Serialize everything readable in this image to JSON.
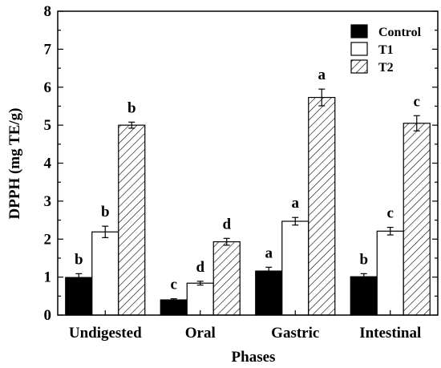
{
  "chart_data": {
    "type": "bar",
    "xlabel": "Phases",
    "ylabel": "DPPH (mg TE/g)",
    "ylim": [
      0,
      8
    ],
    "yticks": [
      0,
      1,
      2,
      3,
      4,
      5,
      6,
      7,
      8
    ],
    "categories": [
      "Undigested",
      "Oral",
      "Gastric",
      "Intestinal"
    ],
    "legend_position": "top-right",
    "series": [
      {
        "name": "Control",
        "fill": "solid",
        "color": "#000000",
        "values": [
          0.99,
          0.4,
          1.16,
          1.01
        ],
        "errors": [
          0.1,
          0.03,
          0.1,
          0.08
        ],
        "labels": [
          "b",
          "c",
          "a",
          "b"
        ]
      },
      {
        "name": "T1",
        "fill": "open",
        "color": "#ffffff",
        "values": [
          2.19,
          0.84,
          2.47,
          2.21
        ],
        "errors": [
          0.15,
          0.05,
          0.1,
          0.1
        ],
        "labels": [
          "b",
          "d",
          "a",
          "c"
        ]
      },
      {
        "name": "T2",
        "fill": "hatched",
        "color": "#ffffff",
        "values": [
          5.0,
          1.93,
          5.73,
          5.05
        ],
        "errors": [
          0.08,
          0.09,
          0.22,
          0.2
        ],
        "labels": [
          "b",
          "d",
          "a",
          "c"
        ]
      }
    ]
  }
}
